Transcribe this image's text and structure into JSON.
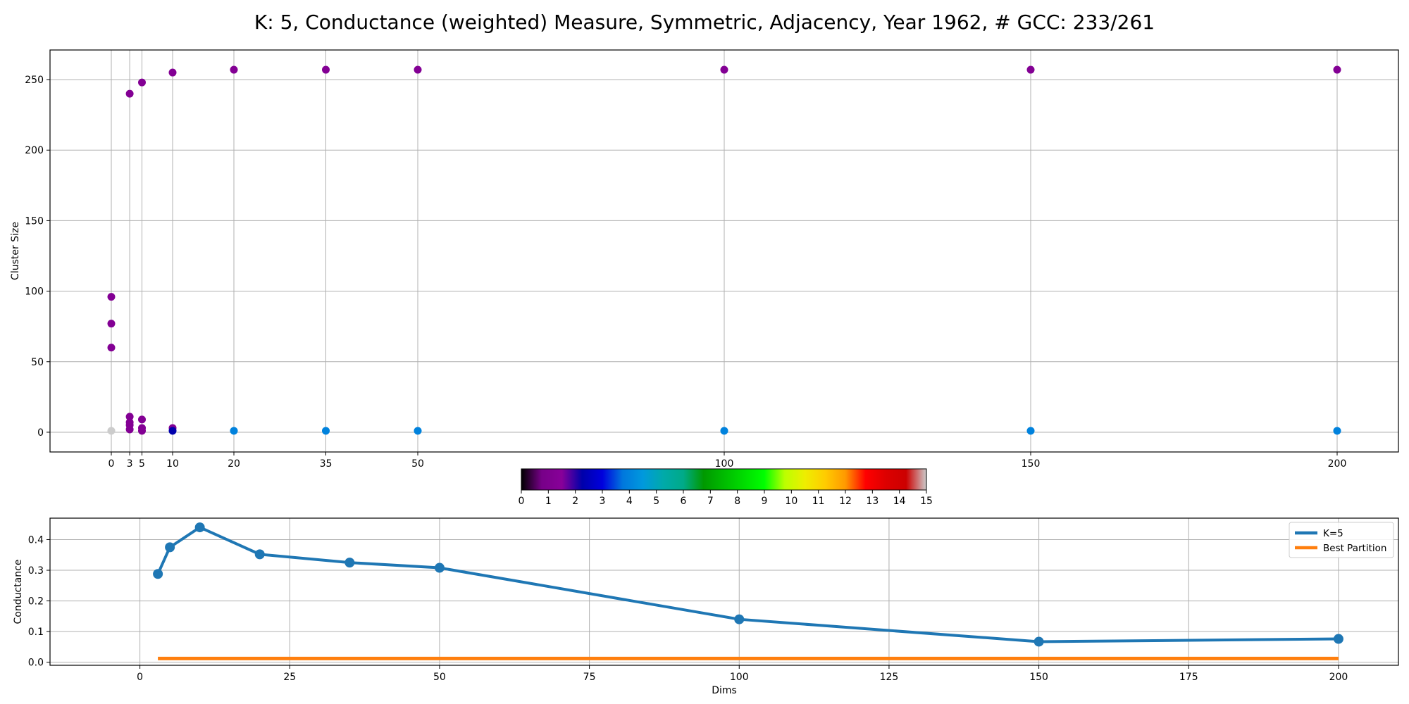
{
  "title": "K: 5, Conductance (weighted) Measure, Symmetric, Adjacency, Year 1962, # GCC: 233/261",
  "chart_data": [
    {
      "type": "scatter",
      "ylabel": "Cluster Size",
      "xlabel": "",
      "x_categories": [
        "0",
        "3",
        "5",
        "10",
        "20",
        "35",
        "50",
        "100",
        "150",
        "200"
      ],
      "x_ticks": [
        0,
        3,
        5,
        10,
        20,
        35,
        50,
        100,
        150,
        200
      ],
      "xlim": [
        -10,
        210
      ],
      "ylim": [
        -14,
        271
      ],
      "y_ticks": [
        0,
        50,
        100,
        150,
        200,
        250
      ],
      "grid": true,
      "points": [
        {
          "x": 0,
          "y": 96,
          "c": 1.3
        },
        {
          "x": 0,
          "y": 77,
          "c": 1.3
        },
        {
          "x": 0,
          "y": 60,
          "c": 1.3
        },
        {
          "x": 0,
          "y": 1,
          "c": 15
        },
        {
          "x": 3,
          "y": 240,
          "c": 1.3
        },
        {
          "x": 3,
          "y": 11,
          "c": 1.3
        },
        {
          "x": 3,
          "y": 7,
          "c": 1.3
        },
        {
          "x": 3,
          "y": 5,
          "c": 1.3
        },
        {
          "x": 3,
          "y": 2,
          "c": 1.3
        },
        {
          "x": 5,
          "y": 248,
          "c": 1.3
        },
        {
          "x": 5,
          "y": 9,
          "c": 1.3
        },
        {
          "x": 5,
          "y": 3,
          "c": 1.3
        },
        {
          "x": 5,
          "y": 1,
          "c": 1.3
        },
        {
          "x": 10,
          "y": 255,
          "c": 1.3
        },
        {
          "x": 10,
          "y": 3,
          "c": 1.3
        },
        {
          "x": 10,
          "y": 1,
          "c": 2.3
        },
        {
          "x": 20,
          "y": 257,
          "c": 1.3
        },
        {
          "x": 20,
          "y": 1,
          "c": 4.0
        },
        {
          "x": 35,
          "y": 257,
          "c": 1.3
        },
        {
          "x": 35,
          "y": 1,
          "c": 4.0
        },
        {
          "x": 50,
          "y": 257,
          "c": 1.3
        },
        {
          "x": 50,
          "y": 1,
          "c": 4.0
        },
        {
          "x": 100,
          "y": 257,
          "c": 1.3
        },
        {
          "x": 100,
          "y": 1,
          "c": 4.0
        },
        {
          "x": 150,
          "y": 257,
          "c": 1.3
        },
        {
          "x": 150,
          "y": 1,
          "c": 4.0
        },
        {
          "x": 200,
          "y": 257,
          "c": 1.3
        },
        {
          "x": 200,
          "y": 1,
          "c": 4.0
        }
      ]
    },
    {
      "type": "colorbar",
      "range": [
        0,
        15
      ],
      "ticks": [
        "0",
        "1",
        "2",
        "3",
        "4",
        "5",
        "6",
        "7",
        "8",
        "9",
        "10",
        "11",
        "12",
        "13",
        "14",
        "15"
      ],
      "colormap": "nipy_spectral"
    },
    {
      "type": "line",
      "xlabel": "Dims",
      "ylabel": "Conductance",
      "xlim": [
        -15,
        210
      ],
      "ylim": [
        -0.01,
        0.47
      ],
      "x_ticks": [
        "0",
        "25",
        "50",
        "75",
        "100",
        "125",
        "150",
        "175",
        "200"
      ],
      "y_ticks": [
        "0.0",
        "0.1",
        "0.2",
        "0.3",
        "0.4"
      ],
      "grid": true,
      "legend_position": "top-right",
      "series": [
        {
          "name": "K=5",
          "color": "#1f77b4",
          "markers": true,
          "x": [
            3,
            5,
            10,
            20,
            35,
            50,
            100,
            150,
            200
          ],
          "y": [
            0.288,
            0.375,
            0.44,
            0.352,
            0.325,
            0.308,
            0.14,
            0.067,
            0.076
          ]
        },
        {
          "name": "Best Partition",
          "color": "#ff7f0e",
          "markers": false,
          "x": [
            3,
            200
          ],
          "y": [
            0.012,
            0.012
          ]
        }
      ]
    }
  ]
}
